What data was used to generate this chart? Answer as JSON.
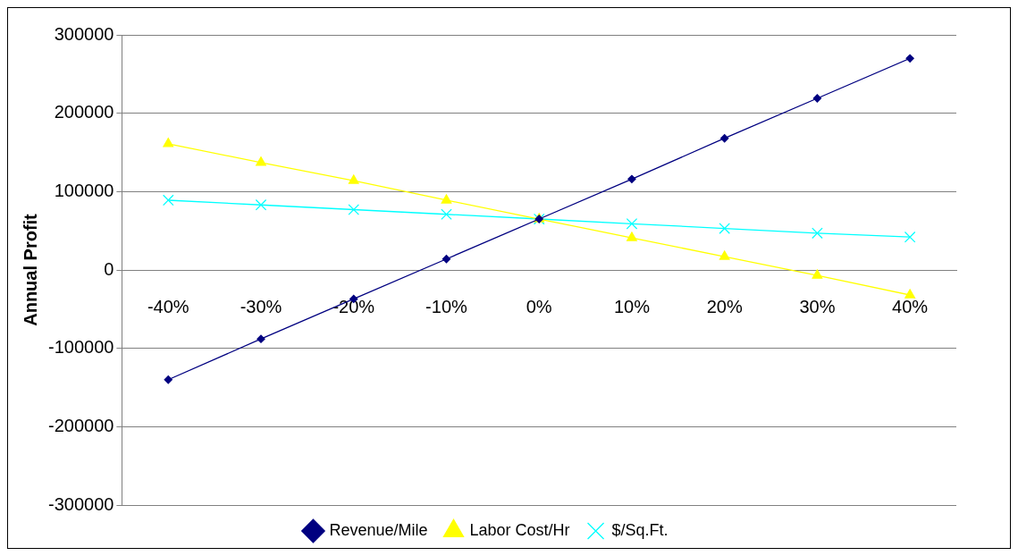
{
  "chart_data": {
    "type": "line",
    "ylabel": "Annual Profit",
    "categories": [
      "-40%",
      "-30%",
      "-20%",
      "-10%",
      "0%",
      "10%",
      "20%",
      "30%",
      "40%"
    ],
    "series": [
      {
        "name": "Revenue/Mile",
        "color": "#000080",
        "marker": "diamond",
        "values": [
          -140000,
          -88000,
          -37000,
          14000,
          65000,
          116000,
          168000,
          219000,
          270000
        ]
      },
      {
        "name": "Labor Cost/Hr",
        "color": "#ffff00",
        "marker": "triangle",
        "values": [
          161000,
          137000,
          114000,
          89000,
          65000,
          41000,
          17000,
          -7000,
          -32000
        ]
      },
      {
        "name": "$/Sq.Ft.",
        "color": "#00ffff",
        "marker": "cross",
        "values": [
          89000,
          83000,
          77000,
          71000,
          65000,
          59000,
          53000,
          47000,
          42000
        ]
      }
    ],
    "ylim": [
      -300000,
      300000
    ],
    "yticks": [
      -300000,
      -200000,
      -100000,
      0,
      100000,
      200000,
      300000
    ],
    "grid": "y",
    "legend": "bottom",
    "line_style": "solid"
  }
}
